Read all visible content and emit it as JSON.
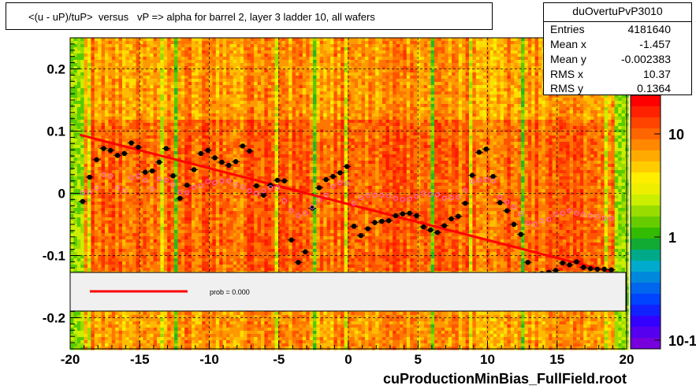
{
  "title": "<(u - uP)/tuP>  versus   vP => alpha for barrel 2, layer 3 ladder 10, all wafers",
  "stats": {
    "name": "duOvertuPvP3010",
    "rows": [
      {
        "key": "Entries",
        "value": "4181640"
      },
      {
        "key": "Mean x",
        "value": "-1.457"
      },
      {
        "key": "Mean y",
        "value": "-0.002383"
      },
      {
        "key": "RMS x",
        "value": "10.37"
      },
      {
        "key": "RMS y",
        "value": "0.1364"
      }
    ]
  },
  "legend": {
    "fit_label": "prob = 0.000"
  },
  "filename": "cuProductionMinBias_FullField.root",
  "colors": {
    "fit_line": "#ff0000",
    "profile_black": "#000000",
    "profile_pink": "#ff66cc"
  },
  "chart_data": {
    "type": "heatmap",
    "xlim": [
      -20,
      20
    ],
    "ylim": [
      -0.25,
      0.25
    ],
    "x_ticks": [
      "-20",
      "-15",
      "-10",
      "-5",
      "0",
      "5",
      "10",
      "15",
      "20"
    ],
    "x_tick_values": [
      -20,
      -15,
      -10,
      -5,
      0,
      5,
      10,
      15,
      20
    ],
    "y_ticks": [
      "0.2",
      "0.1",
      "0",
      "-0.1",
      "-0.2"
    ],
    "y_tick_values": [
      0.2,
      0.1,
      0,
      -0.1,
      -0.2
    ],
    "z_scale": "log",
    "z_ticks": [
      "10",
      "1",
      "10-1"
    ],
    "z_tick_values": [
      10,
      1,
      0.1
    ],
    "grid": true,
    "fit_line": {
      "x": [
        -19.3,
        19
      ],
      "y": [
        0.094,
        -0.127
      ]
    },
    "series": [
      {
        "marker": "black-circle",
        "x": [
          -19.1,
          -18.6,
          -18.1,
          -17.6,
          -17.1,
          -16.6,
          -16.1,
          -15.6,
          -15.1,
          -14.6,
          -14.1,
          -13.6,
          -13.1,
          -12.6,
          -12.1,
          -11.6,
          -11.1,
          -10.6,
          -10.1,
          -9.6,
          -9.1,
          -8.6,
          -8.1,
          -7.6,
          -7.1,
          -6.6,
          -6.1,
          -5.6,
          -5.1,
          -4.6,
          -4.1,
          -3.6,
          -3.1,
          -2.6,
          -2.1,
          -1.6,
          -1.1,
          -0.6,
          -0.1,
          0.4,
          0.9,
          1.4,
          1.9,
          2.4,
          2.9,
          3.4,
          3.9,
          4.4,
          4.9,
          5.4,
          5.9,
          6.4,
          6.9,
          7.4,
          7.9,
          8.4,
          8.9,
          9.4,
          9.9,
          10.4,
          10.9,
          11.4,
          11.9,
          12.4,
          12.9,
          13.4,
          13.9,
          14.4,
          14.9,
          15.4,
          15.9,
          16.4,
          16.9,
          17.4,
          17.9,
          18.4,
          18.9
        ],
        "y": [
          -0.013,
          0.026,
          0.054,
          0.072,
          0.069,
          0.061,
          0.064,
          0.081,
          0.074,
          0.034,
          0.036,
          0.05,
          0.072,
          0.028,
          -0.008,
          0.013,
          0.038,
          0.064,
          0.069,
          0.057,
          0.05,
          0.045,
          0.051,
          0.076,
          0.068,
          0.012,
          -0.003,
          0.013,
          0.021,
          0.02,
          -0.075,
          -0.111,
          -0.094,
          -0.024,
          0.009,
          0.022,
          0.027,
          0.033,
          0.043,
          -0.053,
          -0.068,
          -0.057,
          -0.047,
          -0.045,
          -0.044,
          -0.036,
          -0.033,
          -0.032,
          -0.036,
          -0.054,
          -0.059,
          -0.063,
          -0.052,
          -0.041,
          -0.037,
          -0.016,
          0.029,
          0.066,
          0.071,
          0.027,
          -0.015,
          -0.028,
          -0.05,
          -0.066,
          -0.111,
          -0.13,
          -0.129,
          -0.127,
          -0.124,
          -0.112,
          -0.115,
          -0.11,
          -0.119,
          -0.121,
          -0.122,
          -0.122,
          -0.123
        ]
      },
      {
        "marker": "pink-open-circle",
        "x": [
          -19.1,
          -18.6,
          -18.1,
          -17.6,
          -17.1,
          -16.6,
          -16.1,
          -15.6,
          -15.1,
          -14.6,
          -14.1,
          -13.6,
          -13.1,
          -12.6,
          -12.1,
          -11.6,
          -11.1,
          -10.6,
          -10.1,
          -9.6,
          -9.1,
          -8.6,
          -8.1,
          -7.6,
          -7.1,
          -6.6,
          -6.1,
          -5.6,
          -5.1,
          -4.6,
          -4.1,
          -3.6,
          -3.1,
          -2.6,
          -2.1,
          -1.6,
          -1.1,
          -0.6,
          -0.1,
          0.4,
          0.9,
          1.4,
          1.9,
          2.4,
          2.9,
          3.4,
          3.9,
          4.4,
          4.9,
          5.4,
          5.9,
          6.4,
          6.9,
          7.4,
          7.9,
          8.4,
          8.9,
          9.4,
          9.9,
          10.4,
          10.9,
          11.4,
          11.9,
          12.4,
          12.9,
          13.4,
          13.9,
          14.4,
          14.9,
          15.4,
          15.9,
          16.4,
          16.9,
          17.4,
          17.9,
          18.4,
          18.9
        ],
        "y": [
          0.001,
          0.002,
          0.009,
          0.03,
          0.028,
          0.009,
          0.004,
          0.025,
          0.028,
          0.021,
          0.007,
          0.023,
          0.021,
          0.014,
          0.002,
          0.001,
          0.01,
          0.012,
          0.019,
          0.017,
          0.02,
          0.02,
          0.014,
          0.01,
          0.004,
          0.0,
          0.004,
          0.009,
          0.009,
          -0.012,
          -0.028,
          -0.036,
          -0.032,
          -0.022,
          -0.011,
          -0.003,
          0.011,
          0.017,
          0.016,
          -0.016,
          -0.007,
          -0.003,
          -0.003,
          -0.003,
          -0.004,
          -0.008,
          -0.01,
          -0.009,
          -0.005,
          0.0,
          -0.002,
          -0.002,
          -0.008,
          -0.007,
          -0.006,
          0.005,
          0.019,
          0.021,
          0.022,
          0.02,
          -0.006,
          -0.014,
          -0.022,
          -0.033,
          -0.048,
          -0.05,
          -0.044,
          -0.042,
          -0.034,
          -0.032,
          -0.028,
          -0.032,
          -0.034,
          -0.036,
          -0.037,
          -0.04,
          -0.04
        ]
      }
    ]
  }
}
